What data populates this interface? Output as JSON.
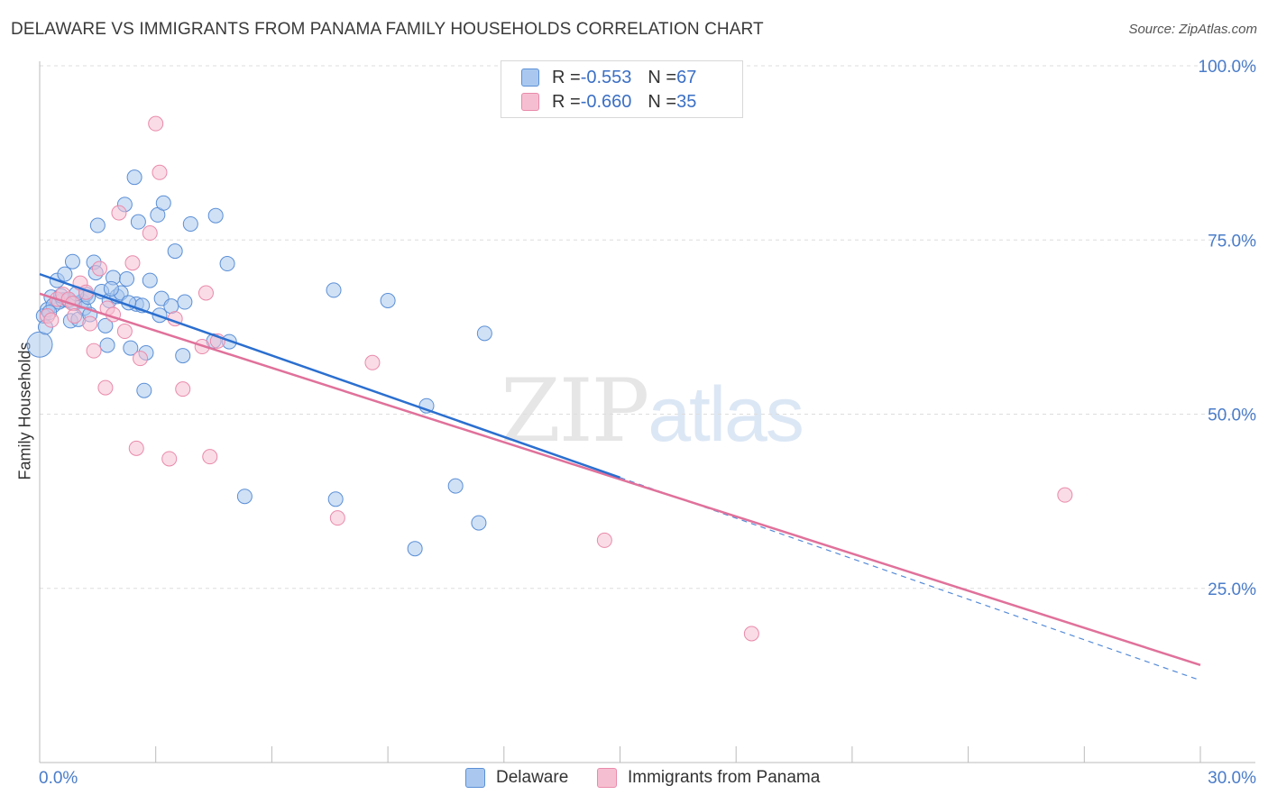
{
  "title": "DELAWARE VS IMMIGRANTS FROM PANAMA FAMILY HOUSEHOLDS CORRELATION CHART",
  "source": "Source: ZipAtlas.com",
  "watermark": {
    "zip": "ZIP",
    "atlas": "atlas"
  },
  "legend": {
    "rows": [
      {
        "r_label": "R = ",
        "r_value": "-0.553",
        "n_label": "N = ",
        "n_value": "67"
      },
      {
        "r_label": "R = ",
        "r_value": "-0.660",
        "n_label": "N = ",
        "n_value": "35"
      }
    ]
  },
  "colors": {
    "delaware_fill": "#aac8ef",
    "delaware_stroke": "#5b8fd6",
    "delaware_line": "#2b6fcf",
    "panama_fill": "#f6bfd1",
    "panama_stroke": "#e98aab",
    "panama_line": "#e0719a",
    "tick_label": "#4a7cc9",
    "grid": "#dddddd"
  },
  "chart_data": {
    "type": "scatter",
    "title": "DELAWARE VS IMMIGRANTS FROM PANAMA FAMILY HOUSEHOLDS CORRELATION CHART",
    "xlabel": "",
    "ylabel": "Family Households",
    "xlim": [
      0,
      30
    ],
    "ylim": [
      0,
      100
    ],
    "x_tick_labels": [
      "0.0%",
      "30.0%"
    ],
    "y_ticks": [
      25,
      50,
      75,
      100
    ],
    "y_tick_labels": [
      "25.0%",
      "50.0%",
      "75.0%",
      "100.0%"
    ],
    "grid": true,
    "series": [
      {
        "name": "Delaware",
        "r": -0.553,
        "n": 67,
        "trend": {
          "x0": 0,
          "y0": 70.1,
          "x1": 15,
          "y1": 40.9
        },
        "dashed_extension": {
          "x0": 15,
          "y0": 40.9,
          "x1": 30,
          "y1": 11.8
        },
        "points": [
          [
            0.0,
            60.0
          ],
          [
            0.1,
            64.1
          ],
          [
            0.15,
            62.5
          ],
          [
            0.2,
            65.0
          ],
          [
            0.3,
            66.8
          ],
          [
            0.35,
            65.6
          ],
          [
            0.45,
            69.2
          ],
          [
            0.5,
            66.1
          ],
          [
            0.6,
            66.4
          ],
          [
            0.65,
            70.1
          ],
          [
            0.75,
            66.3
          ],
          [
            0.8,
            63.4
          ],
          [
            0.85,
            71.9
          ],
          [
            0.9,
            65.9
          ],
          [
            1.0,
            63.6
          ],
          [
            1.1,
            66.2
          ],
          [
            1.15,
            65.2
          ],
          [
            1.2,
            67.2
          ],
          [
            1.3,
            64.3
          ],
          [
            1.4,
            71.8
          ],
          [
            1.45,
            70.3
          ],
          [
            1.5,
            77.1
          ],
          [
            1.6,
            67.6
          ],
          [
            1.7,
            62.7
          ],
          [
            1.75,
            59.9
          ],
          [
            1.8,
            66.3
          ],
          [
            1.9,
            69.6
          ],
          [
            2.0,
            66.9
          ],
          [
            2.1,
            67.4
          ],
          [
            2.2,
            80.1
          ],
          [
            2.25,
            69.4
          ],
          [
            2.35,
            59.5
          ],
          [
            2.45,
            84.0
          ],
          [
            2.5,
            65.8
          ],
          [
            2.55,
            77.6
          ],
          [
            2.65,
            65.6
          ],
          [
            2.7,
            53.4
          ],
          [
            2.75,
            58.8
          ],
          [
            2.85,
            69.2
          ],
          [
            3.05,
            78.6
          ],
          [
            3.1,
            64.2
          ],
          [
            3.15,
            66.6
          ],
          [
            3.2,
            80.3
          ],
          [
            3.4,
            65.5
          ],
          [
            3.5,
            73.4
          ],
          [
            3.7,
            58.4
          ],
          [
            3.75,
            66.1
          ],
          [
            3.9,
            77.3
          ],
          [
            4.5,
            60.5
          ],
          [
            4.55,
            78.5
          ],
          [
            4.85,
            71.6
          ],
          [
            4.9,
            60.4
          ],
          [
            5.3,
            38.2
          ],
          [
            7.6,
            67.8
          ],
          [
            7.65,
            37.8
          ],
          [
            9.0,
            66.3
          ],
          [
            9.7,
            30.7
          ],
          [
            10.0,
            51.2
          ],
          [
            10.75,
            39.7
          ],
          [
            11.35,
            34.4
          ],
          [
            11.5,
            61.6
          ],
          [
            0.55,
            67.0
          ],
          [
            1.25,
            66.8
          ],
          [
            2.3,
            66.0
          ],
          [
            0.95,
            67.3
          ],
          [
            1.85,
            68.0
          ],
          [
            0.25,
            64.6
          ]
        ]
      },
      {
        "name": "Immigrants from Panama",
        "r": -0.66,
        "n": 35,
        "trend": {
          "x0": 0,
          "y0": 67.3,
          "x1": 30,
          "y1": 14.0
        },
        "points": [
          [
            0.2,
            64.1
          ],
          [
            0.3,
            63.5
          ],
          [
            0.45,
            66.5
          ],
          [
            0.6,
            67.2
          ],
          [
            0.75,
            66.5
          ],
          [
            0.85,
            65.9
          ],
          [
            0.9,
            64.1
          ],
          [
            1.05,
            68.8
          ],
          [
            1.2,
            67.5
          ],
          [
            1.3,
            63.0
          ],
          [
            1.4,
            59.1
          ],
          [
            1.55,
            70.9
          ],
          [
            1.7,
            53.8
          ],
          [
            1.75,
            65.2
          ],
          [
            1.9,
            64.3
          ],
          [
            2.05,
            78.9
          ],
          [
            2.2,
            61.9
          ],
          [
            2.4,
            71.7
          ],
          [
            2.5,
            45.1
          ],
          [
            2.6,
            58.0
          ],
          [
            2.85,
            76.0
          ],
          [
            3.0,
            91.7
          ],
          [
            3.1,
            84.7
          ],
          [
            3.35,
            43.6
          ],
          [
            3.5,
            63.7
          ],
          [
            3.7,
            53.6
          ],
          [
            4.2,
            59.7
          ],
          [
            4.3,
            67.4
          ],
          [
            4.4,
            43.9
          ],
          [
            4.6,
            60.5
          ],
          [
            7.7,
            35.1
          ],
          [
            8.6,
            57.4
          ],
          [
            14.6,
            31.9
          ],
          [
            18.4,
            18.5
          ],
          [
            26.5,
            38.4
          ]
        ]
      }
    ]
  },
  "bottom_legend": [
    {
      "label": "Delaware"
    },
    {
      "label": "Immigrants from Panama"
    }
  ]
}
